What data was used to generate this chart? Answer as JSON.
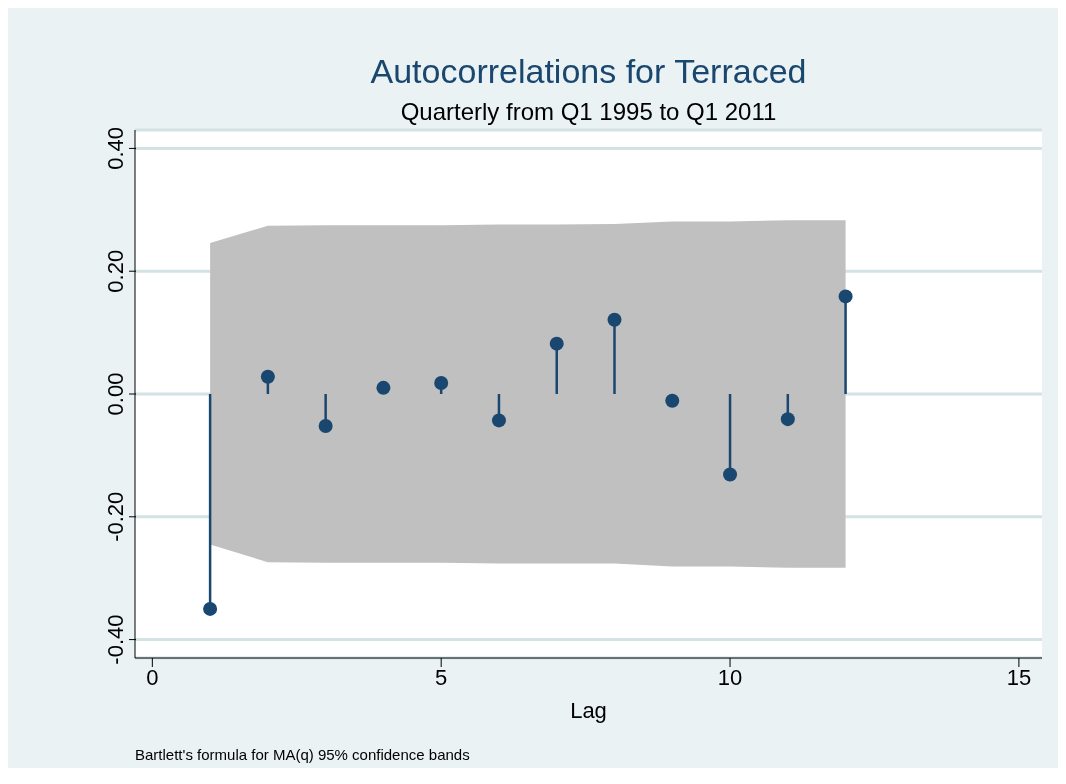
{
  "chart_data": {
    "type": "lollipop",
    "title": "Autocorrelations for Terraced",
    "subtitle": "Quarterly from Q1 1995 to Q1 2011",
    "xlabel": "Lag",
    "annotations": [
      "Bartlett's formula for MA(q) 95% confidence bands"
    ],
    "x": [
      1,
      2,
      3,
      4,
      5,
      6,
      7,
      8,
      9,
      10,
      11,
      12
    ],
    "series": [
      {
        "color": "#1a476f",
        "values": [
          -0.35,
          0.028,
          -0.052,
          0.01,
          0.018,
          -0.043,
          0.082,
          0.121,
          -0.011,
          -0.131,
          -0.041,
          0.159
        ],
        "lower": [
          -0.245,
          -0.274,
          -0.275,
          -0.275,
          -0.275,
          -0.276,
          -0.276,
          -0.276,
          -0.281,
          -0.281,
          -0.283,
          -0.283
        ],
        "upper": [
          0.246,
          0.274,
          0.275,
          0.275,
          0.275,
          0.276,
          0.276,
          0.277,
          0.281,
          0.281,
          0.283,
          0.283
        ]
      }
    ],
    "xlim": [
      -0.3,
      15.4
    ],
    "xticks": [
      0,
      5,
      10,
      15
    ],
    "ylim": [
      -0.43,
      0.43
    ],
    "yticks": [
      {
        "value": -0.4,
        "label": "-0.40"
      },
      {
        "value": -0.2,
        "label": "-0.20"
      },
      {
        "value": 0,
        "label": "0.00"
      },
      {
        "value": 0.2,
        "label": "0.20"
      },
      {
        "value": 0.4,
        "label": "0.40"
      }
    ],
    "grid": "y",
    "marker": "circle"
  }
}
